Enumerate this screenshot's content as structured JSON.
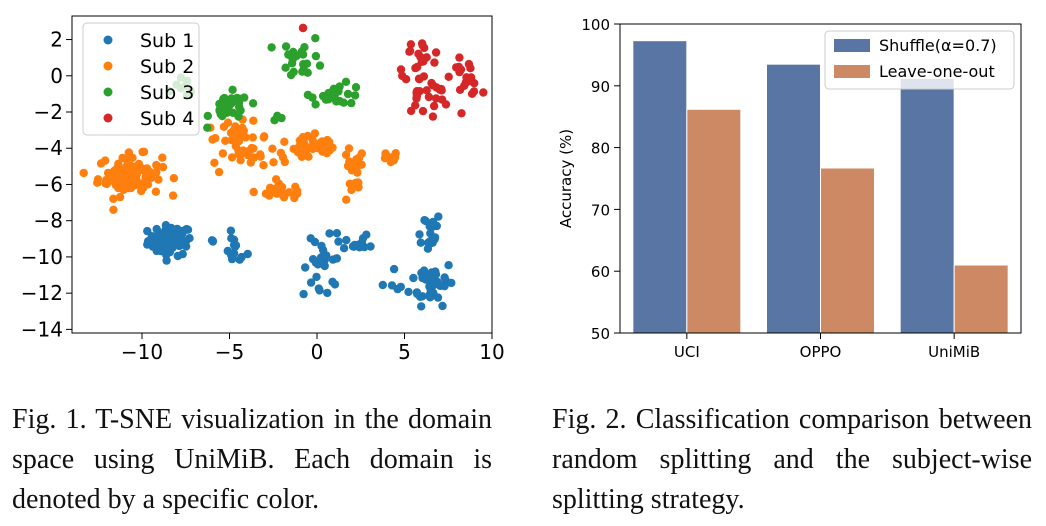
{
  "captions": {
    "fig1": "Fig. 1.  T-SNE visualization in the domain space using UniMiB. Each domain is denoted by a specific color.",
    "fig2": "Fig. 2.  Classification comparison between random splitting and the subject-wise splitting strategy."
  },
  "chart_data": [
    {
      "type": "scatter",
      "title": "",
      "xlabel": "",
      "ylabel": "",
      "xlim": [
        -14,
        10
      ],
      "ylim": [
        -14.2,
        3.3
      ],
      "xticks": [
        -10,
        -5,
        0,
        5,
        10
      ],
      "xtick_labels": [
        "−10",
        "−5",
        "0",
        "5",
        "10"
      ],
      "yticks": [
        2,
        0,
        -2,
        -4,
        -6,
        -8,
        -10,
        -12,
        -14
      ],
      "ytick_labels": [
        "2",
        "0",
        "−2",
        "−4",
        "−6",
        "−8",
        "−10",
        "−12",
        "−14"
      ],
      "grid": false,
      "legend_position": "top-left",
      "series": [
        {
          "name": "Sub 1",
          "color": "#1f77b4",
          "clusters": [
            {
              "cx": -8.4,
              "cy": -9.1,
              "sx": 0.9,
              "sy": 0.6,
              "n": 70
            },
            {
              "cx": -4.7,
              "cy": -9.6,
              "sx": 0.5,
              "sy": 0.6,
              "n": 14
            },
            {
              "cx": -6.2,
              "cy": -9.1,
              "sx": 0.3,
              "sy": 0.2,
              "n": 3
            },
            {
              "cx": 0.3,
              "cy": -10.8,
              "sx": 0.8,
              "sy": 1.2,
              "n": 22
            },
            {
              "cx": 2.0,
              "cy": -9.3,
              "sx": 0.8,
              "sy": 0.8,
              "n": 16
            },
            {
              "cx": 6.3,
              "cy": -8.6,
              "sx": 0.6,
              "sy": 0.8,
              "n": 18
            },
            {
              "cx": 6.6,
              "cy": -11.4,
              "sx": 0.9,
              "sy": 0.9,
              "n": 42
            },
            {
              "cx": 4.0,
              "cy": -11.6,
              "sx": 0.5,
              "sy": 0.2,
              "n": 4
            }
          ]
        },
        {
          "name": "Sub 2",
          "color": "#ff7f0e",
          "clusters": [
            {
              "cx": -10.7,
              "cy": -5.5,
              "sx": 1.3,
              "sy": 0.8,
              "n": 90
            },
            {
              "cx": -4.5,
              "cy": -3.4,
              "sx": 1.3,
              "sy": 0.6,
              "n": 30
            },
            {
              "cx": -4.0,
              "cy": -4.4,
              "sx": 0.6,
              "sy": 0.3,
              "n": 10
            },
            {
              "cx": -0.4,
              "cy": -4.0,
              "sx": 1.5,
              "sy": 0.6,
              "n": 40
            },
            {
              "cx": -2.0,
              "cy": -6.4,
              "sx": 1.1,
              "sy": 0.3,
              "n": 25
            },
            {
              "cx": 2.0,
              "cy": -5.6,
              "sx": 0.5,
              "sy": 1.2,
              "n": 20
            },
            {
              "cx": 4.2,
              "cy": -4.6,
              "sx": 0.3,
              "sy": 0.3,
              "n": 10
            },
            {
              "cx": -5.8,
              "cy": -5.1,
              "sx": 0.2,
              "sy": 0.2,
              "n": 2
            }
          ]
        },
        {
          "name": "Sub 3",
          "color": "#2ca02c",
          "clusters": [
            {
              "cx": -7.5,
              "cy": -0.6,
              "sx": 0.5,
              "sy": 0.4,
              "n": 8
            },
            {
              "cx": -5.0,
              "cy": -1.8,
              "sx": 0.8,
              "sy": 0.6,
              "n": 30
            },
            {
              "cx": -0.8,
              "cy": 1.0,
              "sx": 0.9,
              "sy": 0.8,
              "n": 22
            },
            {
              "cx": 1.2,
              "cy": -1.0,
              "sx": 1.1,
              "sy": 0.4,
              "n": 22
            },
            {
              "cx": -2.3,
              "cy": -2.4,
              "sx": 0.3,
              "sy": 0.2,
              "n": 3
            }
          ]
        },
        {
          "name": "Sub 4",
          "color": "#d62728",
          "clusters": [
            {
              "cx": 5.8,
              "cy": 1.0,
              "sx": 1.0,
              "sy": 0.7,
              "n": 18
            },
            {
              "cx": 8.5,
              "cy": -0.1,
              "sx": 0.6,
              "sy": 0.7,
              "n": 18
            },
            {
              "cx": 6.2,
              "cy": -1.0,
              "sx": 1.0,
              "sy": 0.8,
              "n": 26
            },
            {
              "cx": -0.8,
              "cy": 2.6,
              "sx": 0.1,
              "sy": 0.1,
              "n": 2
            }
          ]
        }
      ]
    },
    {
      "type": "bar",
      "title": "",
      "xlabel": "",
      "ylabel": "Accuracy (%)",
      "ylim": [
        50,
        100
      ],
      "yticks": [
        50,
        60,
        70,
        80,
        90,
        100
      ],
      "categories": [
        "UCI",
        "OPPO",
        "UniMiB"
      ],
      "grid": false,
      "legend_position": "top-right",
      "series": [
        {
          "name": "Shuffle(α=0.7)",
          "color": "#5975a4",
          "values": [
            97.3,
            93.5,
            91.2
          ]
        },
        {
          "name": "Leave-one-out",
          "color": "#cc8963",
          "values": [
            86.2,
            76.7,
            61.0
          ]
        }
      ]
    }
  ]
}
